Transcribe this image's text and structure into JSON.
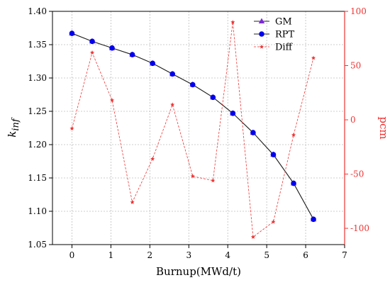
{
  "chart_data": {
    "type": "line",
    "xlabel": "Burnup(MWd/t)",
    "ylabel_main": "k",
    "ylabel_sub": "inf",
    "ylabel_right": "pcm",
    "xlim": [
      -0.5,
      7
    ],
    "ylim": [
      1.05,
      1.4
    ],
    "ylim_right": [
      -115,
      100
    ],
    "x_ticks": [
      0,
      1,
      2,
      3,
      4,
      5,
      6,
      7
    ],
    "y_ticks": [
      1.05,
      1.1,
      1.15,
      1.2,
      1.25,
      1.3,
      1.35,
      1.4
    ],
    "y_right_ticks": [
      -100,
      -50,
      0,
      50,
      100
    ],
    "x": [
      0.0,
      0.52,
      1.03,
      1.55,
      2.07,
      2.58,
      3.1,
      3.62,
      4.13,
      4.65,
      5.17,
      5.69,
      6.2
    ],
    "series": [
      {
        "name": "GM",
        "axis": "left",
        "values": [
          1.367,
          1.355,
          1.345,
          1.335,
          1.322,
          1.306,
          1.29,
          1.271,
          1.247,
          1.218,
          1.185,
          1.142,
          1.088
        ],
        "color": "#7B2BD8",
        "marker": "triangle"
      },
      {
        "name": "RPT",
        "axis": "left",
        "values": [
          1.367,
          1.355,
          1.345,
          1.335,
          1.322,
          1.306,
          1.29,
          1.271,
          1.247,
          1.218,
          1.185,
          1.142,
          1.088
        ],
        "color": "#0000EE",
        "marker": "circle"
      },
      {
        "name": "Diff",
        "axis": "right",
        "values": [
          -8,
          62,
          18,
          -76,
          -36,
          14,
          -52,
          -56,
          90,
          -108,
          -94,
          -14,
          57
        ],
        "color": "#EE3333",
        "marker": "star"
      }
    ],
    "legend_position": "top-right",
    "grid": true
  }
}
